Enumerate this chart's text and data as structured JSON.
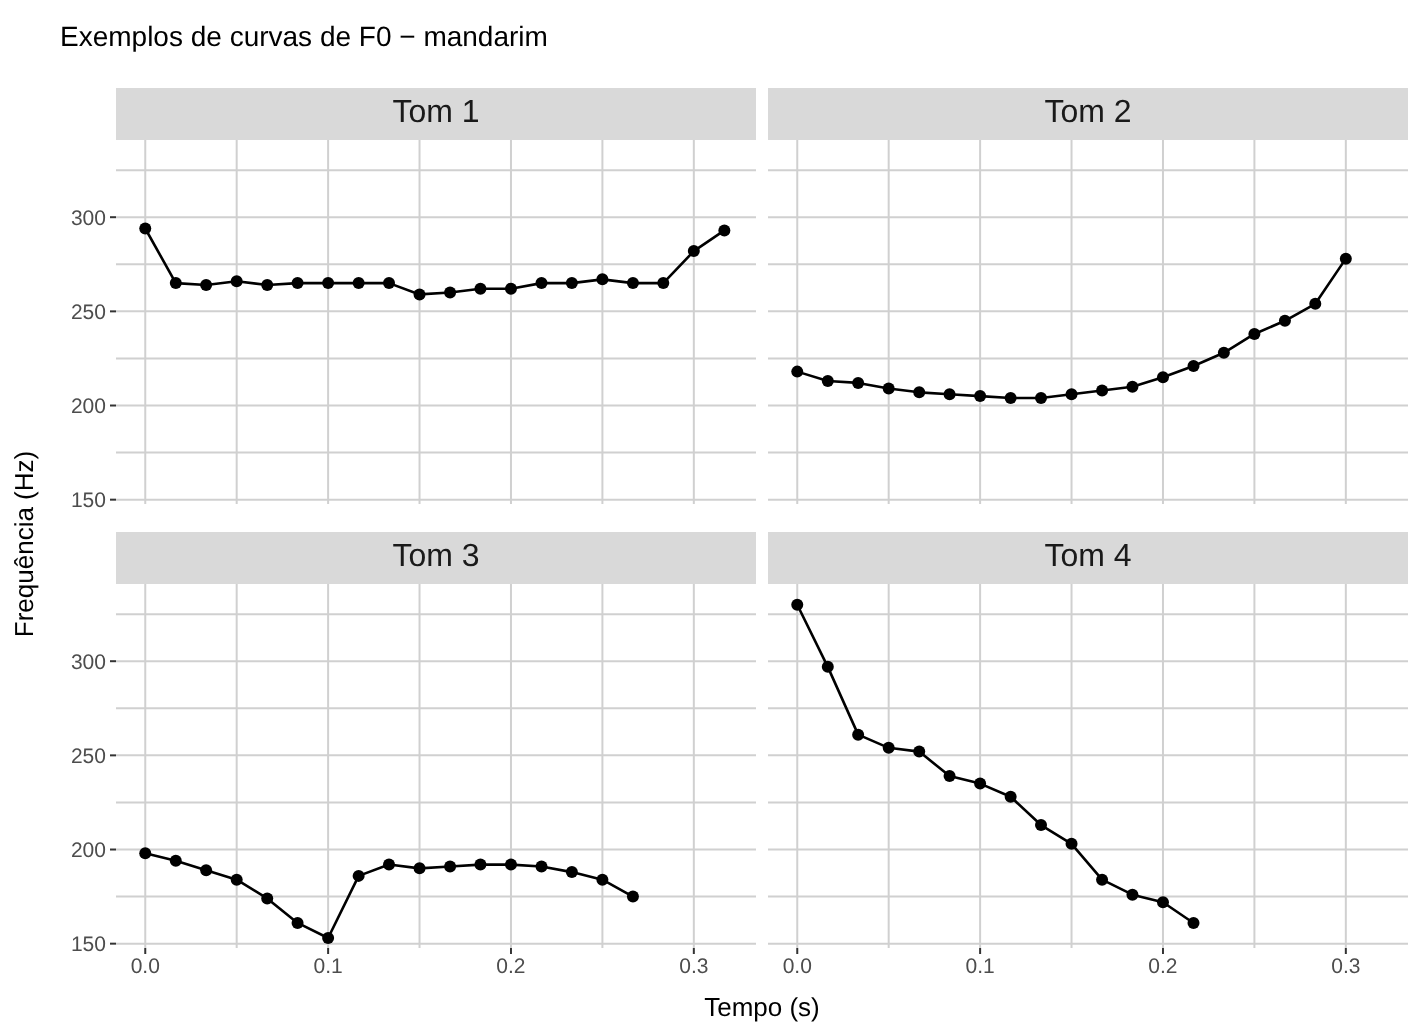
{
  "chart_data": [
    {
      "type": "line",
      "title": "Tom 1",
      "annotations": [
        "Exemplos de curvas de F0 − mandarim"
      ],
      "ylabel": "Frequência (Hz)",
      "xlim": [
        -0.016,
        0.334
      ],
      "xticks": [
        0,
        0.1,
        0.2,
        0.3
      ],
      "ylim": [
        147.7,
        341
      ],
      "yticks": [
        150,
        200,
        250,
        300
      ],
      "grid": true,
      "marker": "circle",
      "tick_labels": "y",
      "series": [
        {
          "color": "#000000",
          "x": [
            0,
            0.0167,
            0.0333,
            0.05,
            0.0667,
            0.0833,
            0.1,
            0.1167,
            0.1333,
            0.15,
            0.1667,
            0.1833,
            0.2,
            0.2167,
            0.2333,
            0.25,
            0.2667,
            0.2833,
            0.3,
            0.3167
          ],
          "values": [
            294,
            265,
            264,
            266,
            264,
            265,
            265,
            265,
            265,
            259,
            260,
            262,
            262,
            265,
            265,
            267,
            265,
            265,
            282,
            293
          ]
        }
      ]
    },
    {
      "type": "line",
      "title": "Tom 2",
      "xlim": [
        -0.016,
        0.334
      ],
      "xticks": [
        0,
        0.1,
        0.2,
        0.3
      ],
      "ylim": [
        147.7,
        341
      ],
      "yticks": [
        150,
        200,
        250,
        300
      ],
      "grid": true,
      "marker": "circle",
      "tick_labels": false,
      "series": [
        {
          "color": "#000000",
          "x": [
            0,
            0.0167,
            0.0333,
            0.05,
            0.0667,
            0.0833,
            0.1,
            0.1167,
            0.1333,
            0.15,
            0.1667,
            0.1833,
            0.2,
            0.2167,
            0.2333,
            0.25,
            0.2667,
            0.2833,
            0.3
          ],
          "values": [
            218,
            213,
            212,
            209,
            207,
            206,
            205,
            204,
            204,
            206,
            208,
            210,
            215,
            221,
            228,
            238,
            245,
            254,
            278
          ]
        }
      ]
    },
    {
      "type": "line",
      "title": "Tom 3",
      "xlabel": "Tempo (s)",
      "xlim": [
        -0.016,
        0.334
      ],
      "xticks": [
        {
          "value": 0,
          "label": "0.0"
        },
        {
          "value": 0.1,
          "label": "0.1"
        },
        {
          "value": 0.2,
          "label": "0.2"
        },
        {
          "value": 0.3,
          "label": "0.3"
        }
      ],
      "ylim": [
        147.7,
        341
      ],
      "yticks": [
        150,
        200,
        250,
        300
      ],
      "grid": true,
      "marker": "circle",
      "series": [
        {
          "color": "#000000",
          "x": [
            0,
            0.0167,
            0.0333,
            0.05,
            0.0667,
            0.0833,
            0.1,
            0.1167,
            0.1333,
            0.15,
            0.1667,
            0.1833,
            0.2,
            0.2167,
            0.2333,
            0.25,
            0.2667
          ],
          "values": [
            198,
            194,
            189,
            184,
            174,
            161,
            153,
            186,
            192,
            190,
            191,
            192,
            192,
            191,
            188,
            184,
            175
          ]
        }
      ]
    },
    {
      "type": "line",
      "title": "Tom 4",
      "xlim": [
        -0.016,
        0.334
      ],
      "xticks": [
        {
          "value": 0,
          "label": "0.0"
        },
        {
          "value": 0.1,
          "label": "0.1"
        },
        {
          "value": 0.2,
          "label": "0.2"
        },
        {
          "value": 0.3,
          "label": "0.3"
        }
      ],
      "ylim": [
        147.7,
        341
      ],
      "yticks": [
        150,
        200,
        250,
        300
      ],
      "grid": true,
      "marker": "circle",
      "tick_labels": "x",
      "series": [
        {
          "color": "#000000",
          "x": [
            0,
            0.0167,
            0.0333,
            0.05,
            0.0667,
            0.0833,
            0.1,
            0.1167,
            0.1333,
            0.15,
            0.1667,
            0.1833,
            0.2,
            0.2167
          ],
          "values": [
            330,
            297,
            261,
            254,
            252,
            239,
            235,
            228,
            213,
            203,
            184,
            176,
            172,
            161
          ]
        }
      ]
    }
  ]
}
